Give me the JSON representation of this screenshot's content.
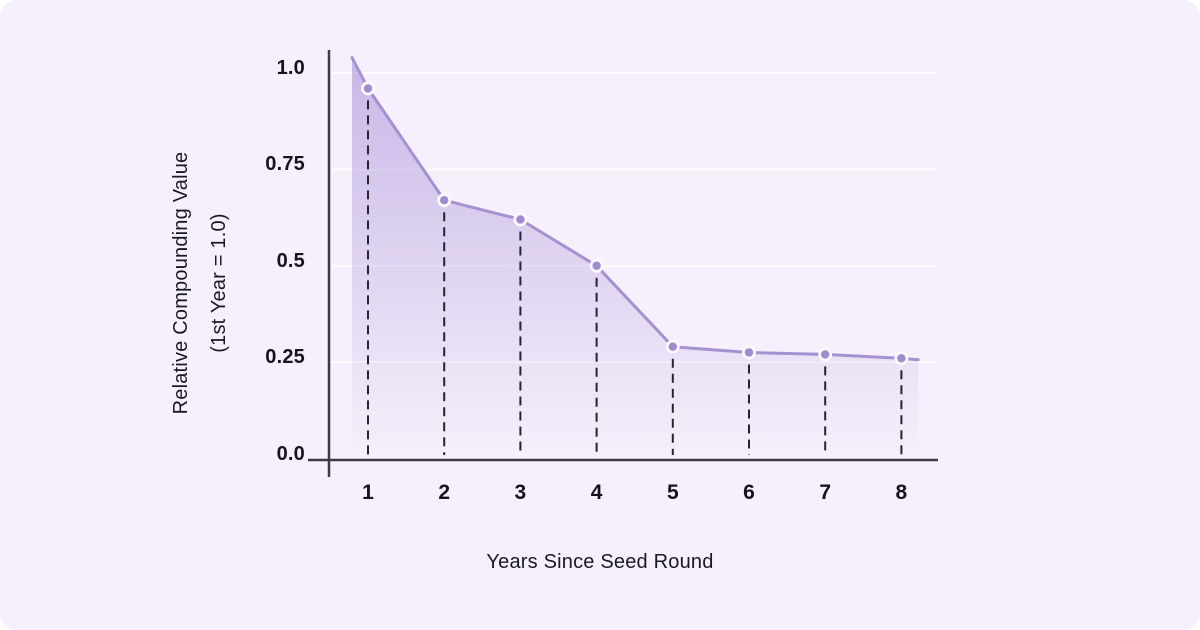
{
  "page": {
    "background": "#ffffff",
    "card_background": "#f5f0fb"
  },
  "chart_data": {
    "type": "area",
    "title": "",
    "xlabel": "Years Since Seed Round",
    "ylabel": "Relative Compounding Value",
    "ylabel_sub": "(1st Year = 1.0)",
    "x": [
      1,
      2,
      3,
      4,
      5,
      6,
      7,
      8
    ],
    "values": [
      0.96,
      0.67,
      0.62,
      0.5,
      0.29,
      0.275,
      0.27,
      0.26
    ],
    "line_start": {
      "x": 0.79,
      "y": 1.04
    },
    "line_end": {
      "x": 8.22,
      "y": 0.256
    },
    "x_ticks": [
      "1",
      "2",
      "3",
      "4",
      "5",
      "6",
      "7",
      "8"
    ],
    "y_ticks": [
      {
        "label": "1.0",
        "value": 1.0
      },
      {
        "label": "0.75",
        "value": 0.75
      },
      {
        "label": "0.5",
        "value": 0.5
      },
      {
        "label": "0.25",
        "value": 0.25
      },
      {
        "label": "0.0",
        "value": 0.0
      }
    ],
    "xlim": [
      0.5,
      8.6
    ],
    "ylim": [
      0,
      1.05
    ],
    "grid": true,
    "legend": "none",
    "marker_style": "circle-with-ring",
    "drop_lines": "dashed",
    "colors": {
      "line": "#a591d1",
      "marker": "#a18ace",
      "marker_ring": "#fbf9fe",
      "fill_top": "rgba(162,136,214,0.55)",
      "fill_bottom": "rgba(162,136,214,0)",
      "axis": "#3e3b47",
      "drop_line": "#272330",
      "gridline": "rgba(255,255,255,0.78)",
      "text": "#16131e"
    }
  }
}
